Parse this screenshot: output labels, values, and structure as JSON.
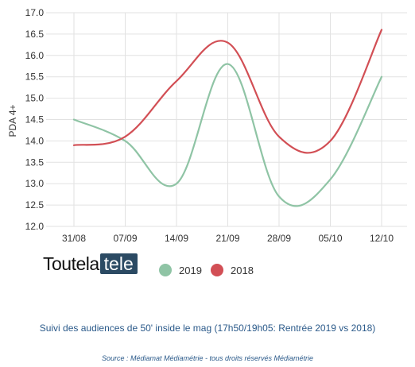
{
  "chart_data": {
    "type": "line",
    "categories": [
      "31/08",
      "07/09",
      "14/09",
      "21/09",
      "28/09",
      "05/10",
      "12/10"
    ],
    "series": [
      {
        "name": "2019",
        "color": "#8fc4a5",
        "values": [
          14.5,
          14.0,
          13.0,
          15.8,
          12.7,
          13.1,
          15.5
        ]
      },
      {
        "name": "2018",
        "color": "#d24f55",
        "values": [
          13.9,
          14.1,
          15.4,
          16.3,
          14.1,
          14.0,
          16.6
        ]
      }
    ],
    "ylabel": "PDA 4+",
    "ylim": [
      12.0,
      17.0
    ],
    "yticks": [
      12.0,
      12.5,
      13.0,
      13.5,
      14.0,
      14.5,
      15.0,
      15.5,
      16.0,
      16.5,
      17.0
    ],
    "grid": true,
    "legend": "bottom"
  },
  "logo": {
    "left_text": "Toutela",
    "right_text": "tele"
  },
  "caption": "Suivi des audiences de 50' inside le mag (17h50/19h05: Rentrée 2019 vs 2018)",
  "source": "Source : Médiamat Médiamétrie - tous droits réservés Médiamétrie"
}
